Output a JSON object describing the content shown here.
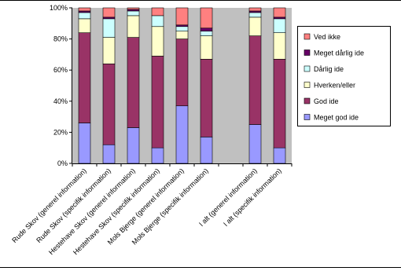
{
  "chart_data": {
    "type": "stacked_bar_percent",
    "categories": [
      "Rude Skov (generel information)",
      "Rude Skov (specifik information)",
      "Hestehave Skov (generel information)",
      "Hestehave Skov (specifik information)",
      "Mols Bjerge (generel information)",
      "Mols Bjerge (specifik information)",
      null,
      "I alt (generel information)",
      "I alt (specifik information)"
    ],
    "series": [
      {
        "name": "Meget god ide",
        "color": "#9999ff",
        "values": [
          26,
          12,
          23,
          10,
          37,
          17,
          null,
          25,
          10
        ]
      },
      {
        "name": "God ide",
        "color": "#993366",
        "values": [
          58,
          52,
          58,
          59,
          43,
          50,
          null,
          57,
          57
        ]
      },
      {
        "name": "Hverken/eller",
        "color": "#ffffcc",
        "values": [
          9,
          17,
          14,
          19,
          5,
          15,
          null,
          12,
          17
        ]
      },
      {
        "name": "Dårlig ide",
        "color": "#ccffff",
        "values": [
          4,
          12,
          3,
          7,
          3,
          3,
          null,
          3,
          9
        ]
      },
      {
        "name": "Meget dårlig ide",
        "color": "#660066",
        "values": [
          1,
          1,
          1,
          0,
          1,
          2,
          null,
          1,
          1
        ]
      },
      {
        "name": "Ved ikke",
        "color": "#ff8080",
        "values": [
          2,
          6,
          1,
          5,
          11,
          13,
          null,
          2,
          6
        ]
      }
    ],
    "ylim": [
      0,
      100
    ],
    "yticks": [
      {
        "value": 0,
        "label": "0%"
      },
      {
        "value": 20,
        "label": "20%"
      },
      {
        "value": 40,
        "label": "40%"
      },
      {
        "value": 60,
        "label": "60%"
      },
      {
        "value": 80,
        "label": "80%"
      },
      {
        "value": 100,
        "label": "100%"
      }
    ],
    "legend": "right"
  }
}
